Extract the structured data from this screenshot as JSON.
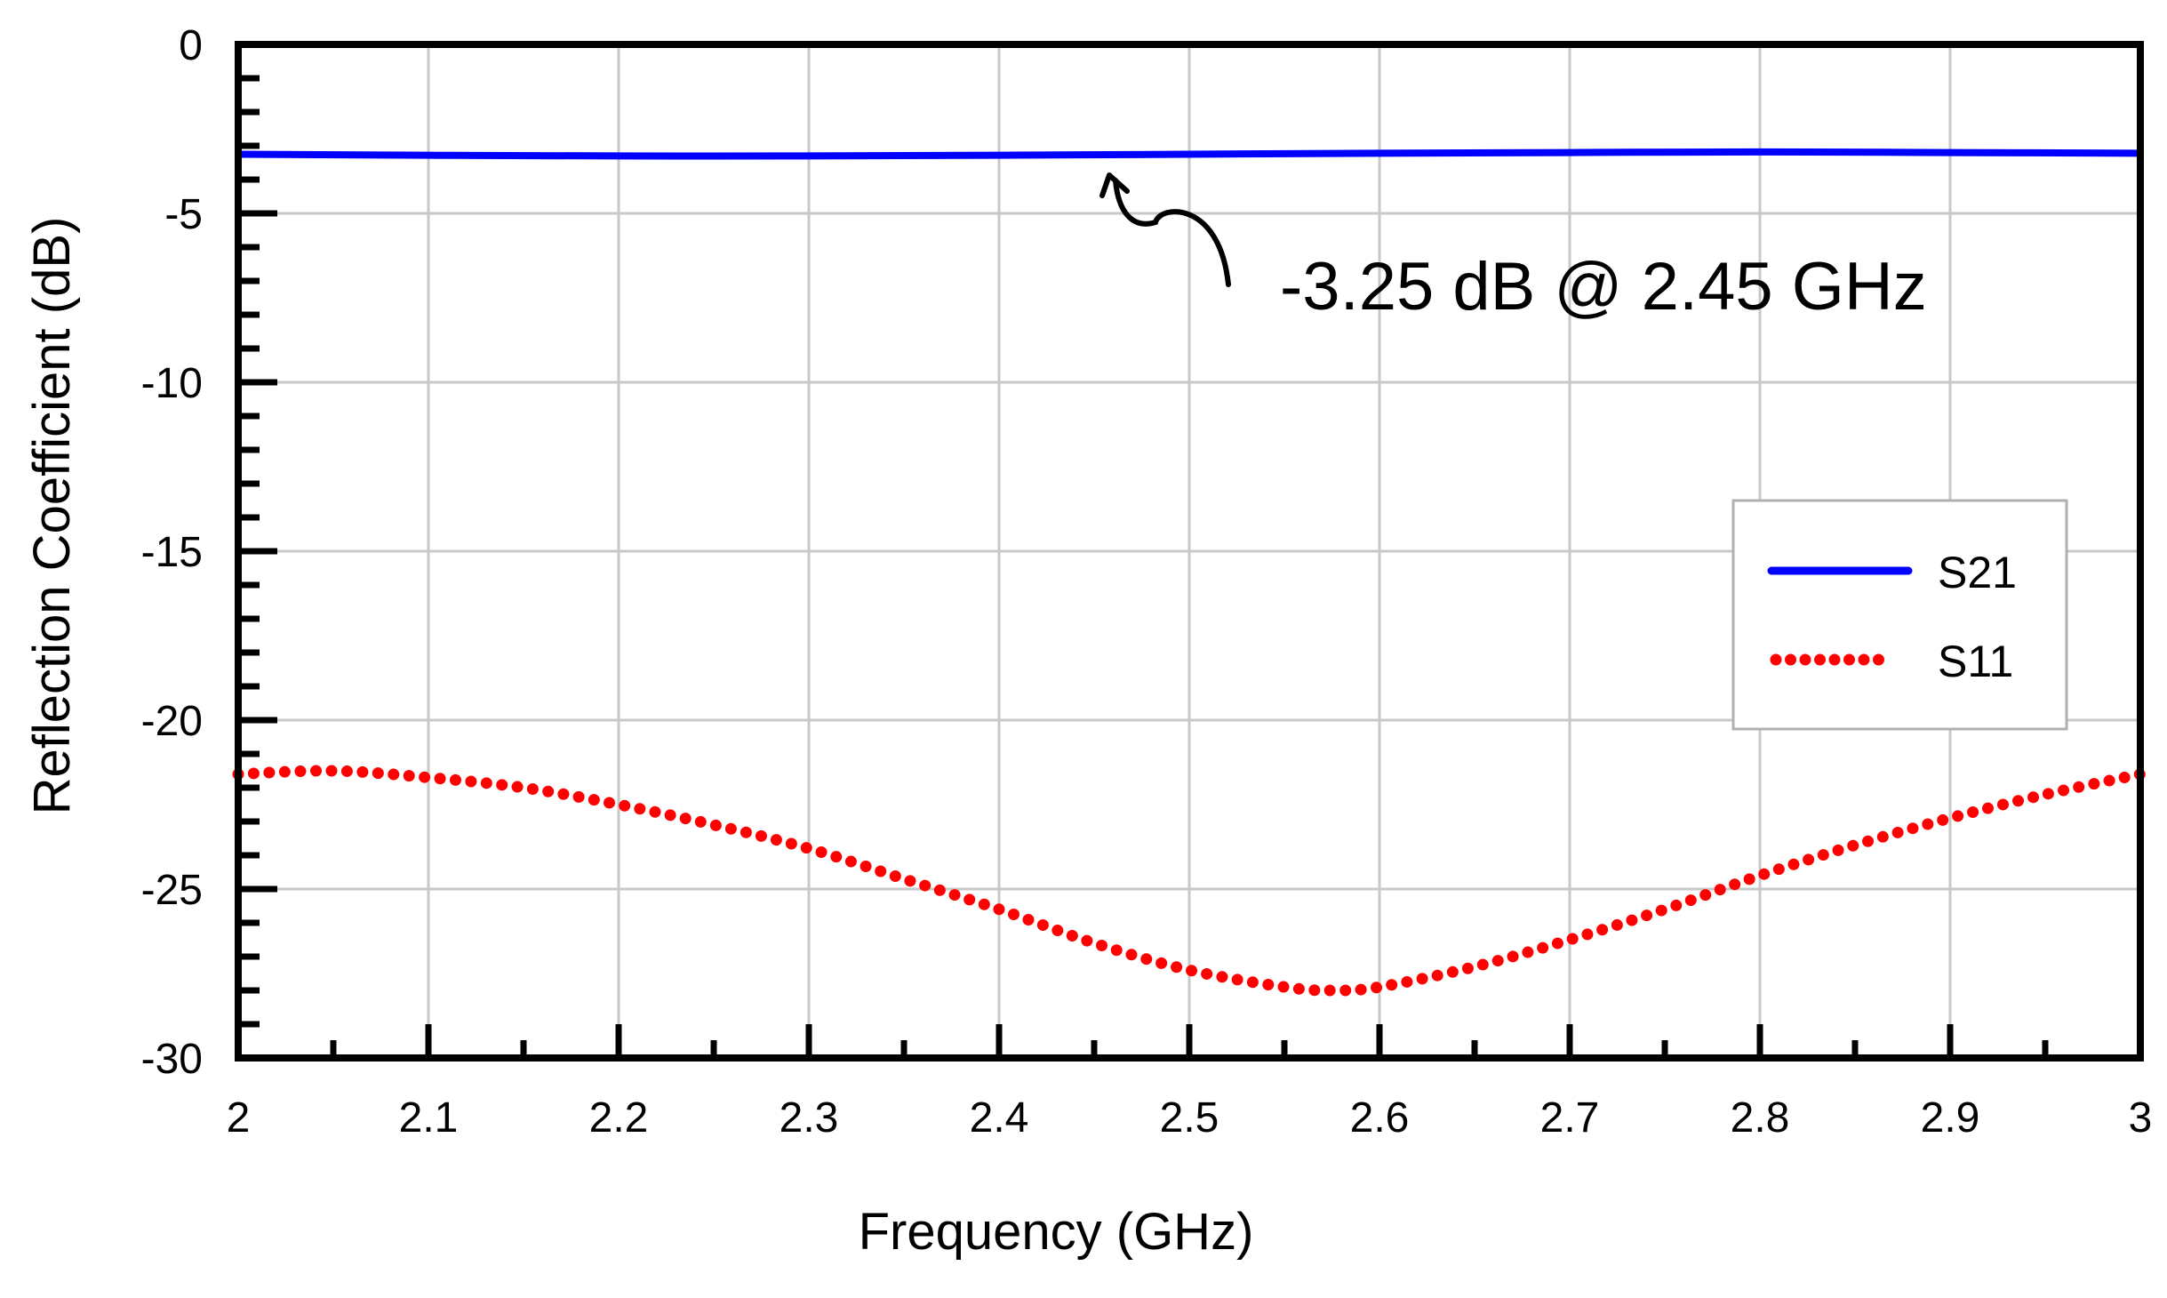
{
  "chart_data": {
    "type": "line",
    "title": "",
    "xlabel": "Frequency (GHz)",
    "ylabel": "Reflection Coefficient (dB)",
    "xlim": [
      2,
      3
    ],
    "ylim": [
      -30,
      0
    ],
    "x_ticks": [
      2,
      2.1,
      2.2,
      2.3,
      2.4,
      2.5,
      2.6,
      2.7,
      2.8,
      2.9,
      3
    ],
    "x_tick_labels": [
      "2",
      "2.1",
      "2.2",
      "2.3",
      "2.4",
      "2.5",
      "2.6",
      "2.7",
      "2.8",
      "2.9",
      "3"
    ],
    "y_ticks": [
      0,
      -5,
      -10,
      -15,
      -20,
      -25,
      -30
    ],
    "y_tick_labels": [
      "0",
      "-5",
      "-10",
      "-15",
      "-20",
      "-25",
      "-30"
    ],
    "grid": true,
    "legend_position": "right",
    "series": [
      {
        "name": "S21",
        "style": "solid",
        "color": "#0000ff",
        "x": [
          2.0,
          2.1,
          2.2,
          2.3,
          2.4,
          2.5,
          2.6,
          2.7,
          2.8,
          2.9,
          3.0
        ],
        "y": [
          -3.25,
          -3.28,
          -3.3,
          -3.3,
          -3.28,
          -3.25,
          -3.22,
          -3.2,
          -3.18,
          -3.2,
          -3.22
        ]
      },
      {
        "name": "S11",
        "style": "dotted",
        "color": "#ff0000",
        "x": [
          2.0,
          2.05,
          2.1,
          2.15,
          2.2,
          2.25,
          2.3,
          2.35,
          2.4,
          2.45,
          2.5,
          2.55,
          2.575,
          2.6,
          2.65,
          2.7,
          2.75,
          2.8,
          2.85,
          2.9,
          2.95,
          3.0
        ],
        "y": [
          -21.6,
          -21.5,
          -21.7,
          -22.0,
          -22.5,
          -23.1,
          -23.8,
          -24.7,
          -25.6,
          -26.6,
          -27.4,
          -27.9,
          -28.0,
          -27.9,
          -27.3,
          -26.5,
          -25.6,
          -24.6,
          -23.7,
          -22.9,
          -22.2,
          -21.6
        ]
      }
    ],
    "annotations": [
      {
        "text": "-3.25 dB @ 2.45 GHz",
        "x": 2.46,
        "y": -3.25
      }
    ]
  }
}
